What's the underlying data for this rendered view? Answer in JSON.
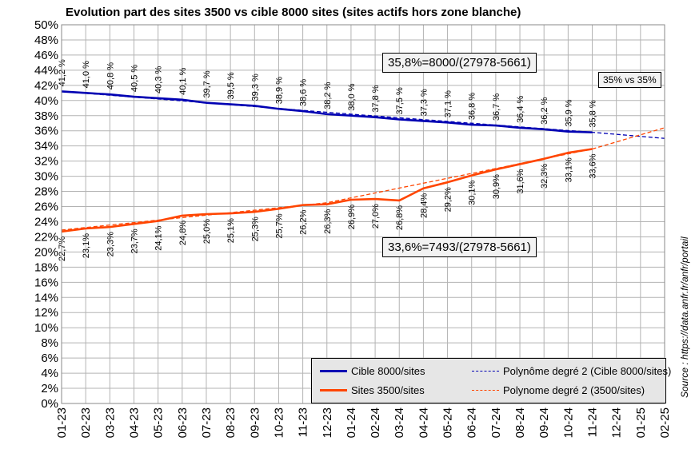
{
  "chart_data": {
    "type": "line",
    "title": "Evolution part des sites 3500 vs cible 8000 sites (sites actifs hors zone blanche)",
    "x_categories": [
      "01-23",
      "02-23",
      "03-23",
      "04-23",
      "05-23",
      "06-23",
      "07-23",
      "08-23",
      "09-23",
      "10-23",
      "11-23",
      "12-23",
      "01-24",
      "02-24",
      "03-24",
      "04-24",
      "05-24",
      "06-24",
      "07-24",
      "08-24",
      "09-24",
      "10-24",
      "11-24",
      "12-24",
      "01-25",
      "02-25"
    ],
    "y_ticks": [
      "0%",
      "2%",
      "4%",
      "6%",
      "8%",
      "10%",
      "12%",
      "14%",
      "16%",
      "18%",
      "20%",
      "22%",
      "24%",
      "26%",
      "28%",
      "30%",
      "32%",
      "34%",
      "36%",
      "38%",
      "40%",
      "42%",
      "44%",
      "46%",
      "48%",
      "50%"
    ],
    "ylim": [
      0,
      50
    ],
    "grid": true,
    "series": [
      {
        "name": "Cible 8000/sites",
        "color": "#0000b3",
        "values": [
          41.2,
          41.0,
          40.8,
          40.5,
          40.3,
          40.1,
          39.7,
          39.5,
          39.3,
          38.9,
          38.6,
          38.2,
          38.0,
          37.8,
          37.5,
          37.3,
          37.1,
          36.8,
          36.7,
          36.4,
          36.2,
          35.9,
          35.8
        ],
        "labels": [
          "41,2 %",
          "41,0 %",
          "40,8 %",
          "40,5 %",
          "40,3 %",
          "40,1 %",
          "39,7 %",
          "39,5 %",
          "39,3 %",
          "38,9 %",
          "38,6 %",
          "38,2 %",
          "38,0 %",
          "37,8 %",
          "37,5 %",
          "37,3 %",
          "37,1 %",
          "36,8 %",
          "36,7 %",
          "36,4 %",
          "36,2 %",
          "35,9 %",
          "35,8 %"
        ]
      },
      {
        "name": "Sites 3500/sites",
        "color": "#ff4500",
        "values": [
          22.7,
          23.1,
          23.3,
          23.7,
          24.1,
          24.8,
          25.0,
          25.1,
          25.3,
          25.7,
          26.2,
          26.3,
          26.9,
          27.0,
          26.8,
          28.4,
          29.2,
          30.1,
          30.9,
          31.6,
          32.3,
          33.1,
          33.6
        ],
        "labels": [
          "22,7%",
          "23,1%",
          "23,3%",
          "23,7%",
          "24,1%",
          "24,8%",
          "25,0%",
          "25,1%",
          "25,3%",
          "25,7%",
          "26,2%",
          "26,3%",
          "26,9%",
          "27,0%",
          "26,8%",
          "28,4%",
          "29,2%",
          "30,1%",
          "30,9%",
          "31,6%",
          "32,3%",
          "33,1%",
          "33,6%"
        ]
      },
      {
        "name": "Polynôme degré 2 (Cible 8000/sites)",
        "color": "#0000b3",
        "dashed": true,
        "points": [
          [
            0,
            41.2
          ],
          [
            12,
            38.2
          ],
          [
            22,
            35.8
          ],
          [
            25,
            35.0
          ]
        ]
      },
      {
        "name": "Polynome degré 2 (3500/sites)",
        "color": "#ff4500",
        "dashed": true,
        "points": [
          [
            0,
            22.9
          ],
          [
            11,
            26.5
          ],
          [
            22,
            33.6
          ],
          [
            25,
            36.4
          ]
        ]
      }
    ],
    "annotations": [
      "35,8%=8000/(27978-5661)",
      "33,6%=7493/(27978-5661)",
      "35% vs 35%"
    ],
    "source": "Source : https://data.anfr.fr/anfr/portail"
  }
}
